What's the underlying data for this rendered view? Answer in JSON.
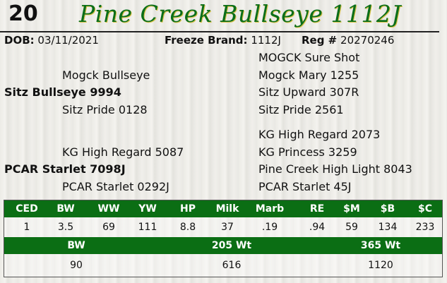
{
  "header": {
    "lot": "20",
    "name": "Pine Creek Bullseye 1112J"
  },
  "info": {
    "dob_label": "DOB:",
    "dob": "03/11/2021",
    "brand_label": "Freeze Brand:",
    "brand": "1112J",
    "reg_label": "Reg #",
    "reg": "20270246"
  },
  "pedigree": {
    "sire": "Sitz Bullseye 9994",
    "sire_sire": "Mogck Bullseye",
    "sire_dam": "Sitz Pride 0128",
    "sss": "MOGCK Sure Shot",
    "ssd": "Mogck Mary 1255",
    "sds": "Sitz Upward 307R",
    "sdd": "Sitz Pride 2561",
    "dam": "PCAR Starlet 7098J",
    "dam_sire": "KG High Regard 5087",
    "dam_dam": "PCAR Starlet 0292J",
    "dss": "KG High Regard 2073",
    "dsd": "KG Princess 3259",
    "dds": "Pine Creek High Light 8043",
    "ddd": "PCAR Starlet 45J"
  },
  "epd": {
    "headers": [
      "CED",
      "BW",
      "WW",
      "YW",
      "HP",
      "Milk",
      "Marb",
      "RE",
      "$M",
      "$B",
      "$C"
    ],
    "values": [
      "1",
      "3.5",
      "69",
      "111",
      "8.8",
      "37",
      ".19",
      ".94",
      "59",
      "134",
      "233"
    ]
  },
  "weights": {
    "headers": [
      "BW",
      "205 Wt",
      "365 Wt"
    ],
    "values": [
      "90",
      "616",
      "1120"
    ]
  },
  "colors": {
    "green": "#0b6e14",
    "title": "#0b6e1a"
  }
}
